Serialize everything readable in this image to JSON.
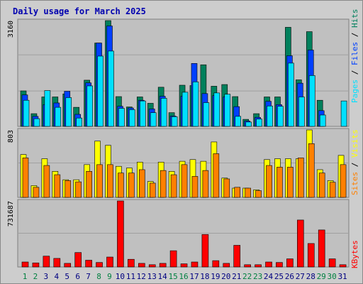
{
  "chart_data": [
    {
      "type": "bar",
      "panel": "hits-files-pages",
      "title": "Daily usage for March 2025",
      "ymax_label": "3160",
      "ylim": [
        0,
        3160
      ],
      "categories": [
        "1",
        "2",
        "3",
        "4",
        "5",
        "6",
        "7",
        "8",
        "9",
        "10",
        "11",
        "12",
        "13",
        "14",
        "15",
        "16",
        "17",
        "18",
        "19",
        "20",
        "21",
        "22",
        "23",
        "24",
        "25",
        "26",
        "27",
        "28",
        "29",
        "30",
        "31"
      ],
      "weekend_days": [
        "1",
        "2",
        "8",
        "9",
        "15",
        "16",
        "22",
        "23",
        "29",
        "30"
      ],
      "series": [
        {
          "name": "Hits",
          "color": "#00805c",
          "values": [
            1060,
            380,
            880,
            880,
            970,
            570,
            1380,
            2490,
            3160,
            890,
            580,
            880,
            690,
            1170,
            410,
            1230,
            1220,
            1840,
            1200,
            1250,
            890,
            210,
            380,
            880,
            880,
            2960,
            1390,
            2830,
            780,
            0,
            0
          ]
        },
        {
          "name": "Files",
          "color": "#0040ff",
          "values": [
            940,
            300,
            650,
            700,
            1050,
            360,
            1300,
            2490,
            3000,
            600,
            550,
            780,
            520,
            900,
            310,
            900,
            1880,
            980,
            920,
            880,
            590,
            160,
            270,
            750,
            650,
            2110,
            1290,
            2280,
            470,
            0,
            0
          ]
        },
        {
          "name": "Pages",
          "color": "#00e0ff",
          "values": [
            780,
            230,
            1070,
            570,
            860,
            250,
            1210,
            2100,
            2250,
            540,
            500,
            760,
            410,
            840,
            290,
            1020,
            1330,
            710,
            1000,
            960,
            300,
            130,
            220,
            610,
            600,
            1890,
            880,
            1520,
            340,
            0,
            760
          ]
        }
      ],
      "legend": [
        "Pages",
        "Files",
        "Hits"
      ]
    },
    {
      "type": "bar",
      "panel": "visits-sites",
      "ymax_label": "803",
      "ylim": [
        0,
        803
      ],
      "series": [
        {
          "name": "Visits",
          "color": "#ffff00",
          "values": [
            510,
            140,
            460,
            310,
            210,
            210,
            390,
            670,
            620,
            370,
            350,
            420,
            190,
            420,
            310,
            430,
            450,
            430,
            660,
            230,
            110,
            110,
            90,
            450,
            460,
            460,
            460,
            803,
            330,
            200,
            500
          ]
        },
        {
          "name": "Sites",
          "color": "#ff8000",
          "values": [
            470,
            120,
            380,
            270,
            200,
            185,
            310,
            390,
            390,
            290,
            290,
            330,
            170,
            320,
            270,
            390,
            250,
            320,
            520,
            220,
            120,
            110,
            80,
            380,
            360,
            360,
            470,
            640,
            290,
            180,
            390
          ]
        }
      ],
      "legend": [
        "Sites",
        "Visits"
      ]
    },
    {
      "type": "bar",
      "panel": "kbytes",
      "ymax_label": "731687",
      "ylim": [
        0,
        731687
      ],
      "series": [
        {
          "name": "KBytes",
          "color": "#ff0000",
          "values": [
            55000,
            45000,
            120000,
            95000,
            40000,
            160000,
            75000,
            50000,
            110000,
            731687,
            85000,
            40000,
            25000,
            40000,
            180000,
            35000,
            55000,
            360000,
            70000,
            40000,
            240000,
            25000,
            25000,
            55000,
            50000,
            90000,
            520000,
            260000,
            410000,
            90000,
            25000
          ]
        }
      ],
      "legend": [
        "KBytes"
      ]
    }
  ]
}
